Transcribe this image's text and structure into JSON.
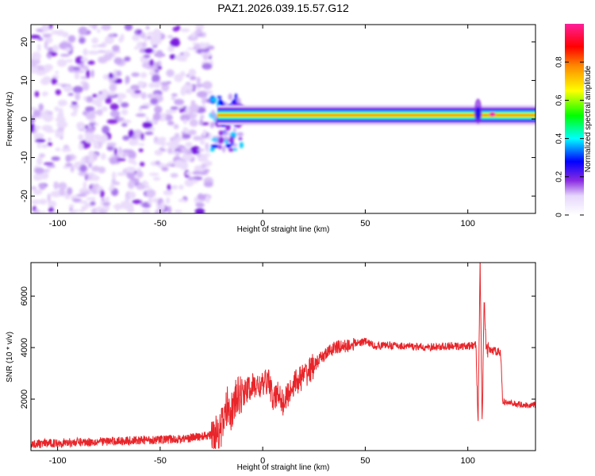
{
  "title": "PAZ1.2026.039.15.57.G12",
  "chart_data": [
    {
      "type": "heatmap",
      "xlabel": "Height of straight line (km)",
      "ylabel": "Frequency (Hz)",
      "xlim": [
        -113,
        133
      ],
      "ylim": [
        -24.5,
        24.5
      ],
      "xticks": [
        -100,
        -50,
        0,
        50,
        100
      ],
      "yticks": [
        -20,
        -10,
        0,
        10,
        20
      ],
      "colorbar": {
        "label": "Normalized spectral amplitude",
        "ticks": [
          0.0,
          0.2,
          0.4,
          0.6,
          0.8
        ],
        "range": [
          0,
          1
        ],
        "colormap": [
          "#ffffff",
          "#e6d7fb",
          "#8a2be2",
          "#0000ff",
          "#00ffff",
          "#00ff00",
          "#ffff00",
          "#ff8800",
          "#ff0000",
          "#ff1f9a"
        ]
      },
      "features": {
        "noise_region_x": [
          -113,
          -25
        ],
        "transition_x": [
          -25,
          -10
        ],
        "main_line_freq_hz": 1.0,
        "main_line_x": [
          -10,
          133
        ],
        "broadening_near_x": 105
      }
    },
    {
      "type": "line",
      "xlabel": "Height of straight line (km)",
      "ylabel": "SNR (10 * v/v)",
      "xlim": [
        -113,
        133
      ],
      "ylim": [
        0,
        7300
      ],
      "xticks": [
        -100,
        -50,
        0,
        50,
        100
      ],
      "yticks": [
        2000,
        4000,
        6000
      ],
      "series": [
        {
          "color": "#e8252a",
          "x": [
            -113,
            -100,
            -80,
            -60,
            -40,
            -25,
            -20,
            -17,
            -15,
            -13,
            -10,
            -5,
            0,
            3,
            5,
            8,
            10,
            15,
            20,
            25,
            30,
            35,
            40,
            45,
            50,
            55,
            60,
            70,
            80,
            90,
            100,
            104,
            105,
            106,
            107,
            108,
            109,
            110,
            115,
            116,
            117,
            120,
            125,
            130,
            133
          ],
          "values": [
            250,
            300,
            350,
            400,
            450,
            600,
            900,
            1800,
            1500,
            2000,
            2200,
            2500,
            2500,
            2800,
            1900,
            2300,
            1800,
            2600,
            2900,
            3300,
            3700,
            4000,
            4050,
            4150,
            4250,
            4050,
            4100,
            4050,
            4000,
            4050,
            4050,
            4100,
            1200,
            7300,
            900,
            6000,
            3800,
            3900,
            3850,
            3800,
            1900,
            1850,
            1800,
            1750,
            1800
          ]
        }
      ]
    }
  ]
}
